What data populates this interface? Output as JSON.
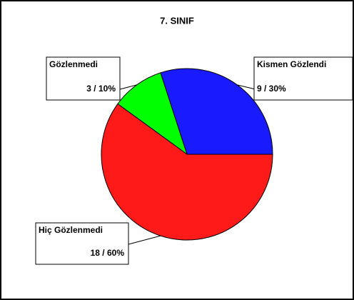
{
  "chart_data": {
    "type": "pie",
    "title": "7. SINIF",
    "categories": [
      "Kismen Gözlendi",
      "Gözlenmedi",
      "Hiç Gözlenmedi"
    ],
    "values": [
      9,
      3,
      18
    ],
    "value_labels": [
      "9 / 30%",
      "3 / 10%",
      "18 / 60%"
    ],
    "colors": [
      "#1a1aff",
      "#00ff00",
      "#ff1a1a"
    ]
  }
}
